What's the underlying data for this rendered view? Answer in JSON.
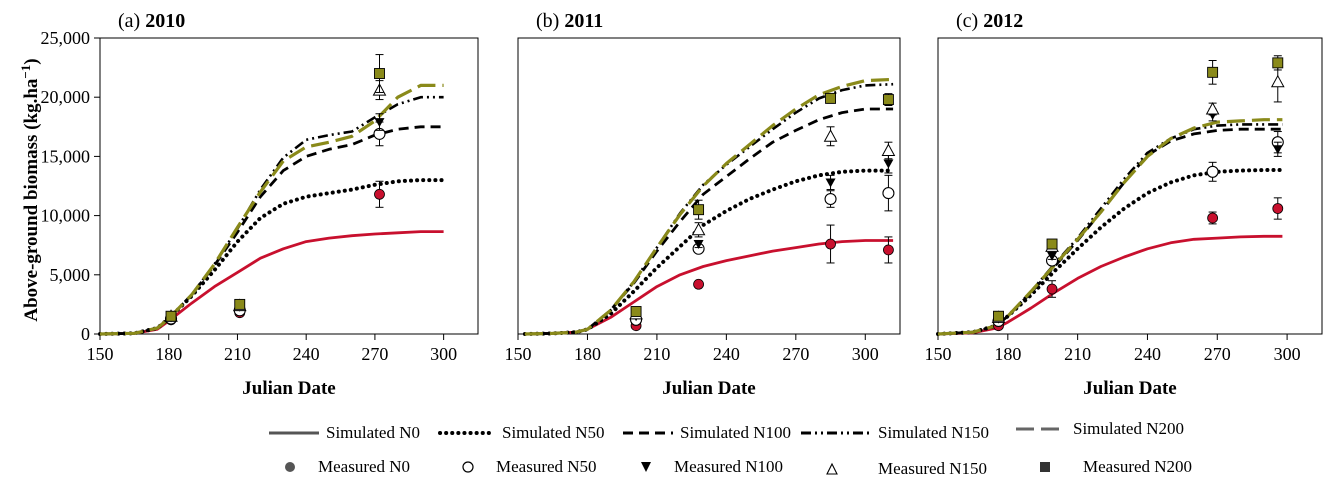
{
  "ylabel": "Above-ground biomass (kg.ha",
  "ylabel_sup": "−1",
  "ylabel_close": ")",
  "colors": {
    "N0": "#c8102e",
    "N200": "#8a8a1a",
    "black": "#000000"
  },
  "legend": {
    "simulated": [
      "Simulated N0",
      "Simulated N50",
      "Simulated N100",
      "Simulated N150",
      "Simulated N200"
    ],
    "measured": [
      "Measured N0",
      "Measured N50",
      "Measured N100",
      "Measured N150",
      "Measured N200"
    ]
  },
  "chart_data": [
    {
      "type": "line",
      "panel_label": "(a) ",
      "year": "2010",
      "xlabel": "Julian Date",
      "xlim": [
        150,
        315
      ],
      "ylim": [
        0,
        25000
      ],
      "xticks": [
        150,
        180,
        210,
        240,
        270,
        300
      ],
      "yticks": [
        0,
        5000,
        10000,
        15000,
        20000,
        25000
      ],
      "ytick_labels": [
        "0",
        "5,000",
        "10,000",
        "15,000",
        "20,000",
        "25,000"
      ],
      "show_yticks": true,
      "simulated": [
        {
          "name": "Simulated N0",
          "x": [
            150,
            165,
            175,
            180,
            190,
            200,
            210,
            220,
            230,
            240,
            250,
            260,
            270,
            280,
            290,
            300
          ],
          "y": [
            0,
            50,
            400,
            1100,
            2600,
            4000,
            5200,
            6400,
            7200,
            7800,
            8100,
            8300,
            8450,
            8550,
            8650,
            8650
          ]
        },
        {
          "name": "Simulated N50",
          "x": [
            150,
            165,
            175,
            180,
            190,
            200,
            210,
            220,
            230,
            240,
            250,
            260,
            270,
            280,
            290,
            300
          ],
          "y": [
            0,
            60,
            500,
            1300,
            3200,
            5400,
            7800,
            9800,
            11000,
            11600,
            11900,
            12200,
            12600,
            12900,
            13000,
            13000
          ]
        },
        {
          "name": "Simulated N100",
          "x": [
            150,
            165,
            175,
            180,
            190,
            200,
            210,
            220,
            230,
            240,
            250,
            260,
            270,
            280,
            290,
            300
          ],
          "y": [
            0,
            60,
            500,
            1300,
            3300,
            5800,
            8600,
            11600,
            13800,
            15000,
            15600,
            16000,
            16800,
            17300,
            17500,
            17500
          ]
        },
        {
          "name": "Simulated N150",
          "x": [
            150,
            165,
            175,
            180,
            190,
            200,
            210,
            220,
            230,
            240,
            250,
            260,
            270,
            280,
            290,
            300
          ],
          "y": [
            0,
            60,
            500,
            1300,
            3300,
            5900,
            8900,
            12200,
            14900,
            16400,
            16800,
            17100,
            18300,
            19400,
            20000,
            20000
          ]
        },
        {
          "name": "Simulated N200",
          "x": [
            150,
            165,
            175,
            180,
            190,
            200,
            210,
            220,
            230,
            240,
            250,
            260,
            270,
            280,
            290,
            300
          ],
          "y": [
            0,
            60,
            500,
            1300,
            3300,
            5900,
            9000,
            12000,
            14600,
            15800,
            16200,
            16700,
            18000,
            20000,
            21000,
            21000
          ]
        }
      ],
      "measured": [
        {
          "name": "Measured N0",
          "x": [
            181,
            211,
            272
          ],
          "y": [
            1200,
            1800,
            11800
          ],
          "err": [
            0,
            200,
            1100
          ]
        },
        {
          "name": "Measured N50",
          "x": [
            181,
            211,
            272
          ],
          "y": [
            1300,
            2000,
            16900
          ],
          "err": [
            0,
            200,
            1000
          ]
        },
        {
          "name": "Measured N100",
          "x": [
            181,
            211,
            272
          ],
          "y": [
            1400,
            2300,
            17900
          ],
          "err": [
            0,
            200,
            700
          ]
        },
        {
          "name": "Measured N150",
          "x": [
            181,
            211,
            272
          ],
          "y": [
            1500,
            2400,
            20600
          ],
          "err": [
            0,
            200,
            800
          ]
        },
        {
          "name": "Measured N200",
          "x": [
            181,
            211,
            272
          ],
          "y": [
            1500,
            2500,
            22000
          ],
          "err": [
            0,
            200,
            1600
          ]
        }
      ]
    },
    {
      "type": "line",
      "panel_label": "(b) ",
      "year": "2011",
      "xlabel": "Julian Date",
      "xlim": [
        150,
        315
      ],
      "ylim": [
        0,
        25000
      ],
      "xticks": [
        150,
        180,
        210,
        240,
        270,
        300
      ],
      "yticks": [
        0,
        5000,
        10000,
        15000,
        20000,
        25000
      ],
      "ytick_labels": [
        "0",
        "5,000",
        "10,000",
        "15,000",
        "20,000",
        "25,000"
      ],
      "show_yticks": false,
      "simulated": [
        {
          "name": "Simulated N0",
          "x": [
            153,
            165,
            175,
            180,
            190,
            200,
            210,
            220,
            230,
            240,
            250,
            260,
            270,
            280,
            290,
            300,
            312
          ],
          "y": [
            0,
            50,
            150,
            400,
            1400,
            2700,
            4000,
            5000,
            5700,
            6200,
            6600,
            7000,
            7300,
            7600,
            7800,
            7900,
            7900
          ]
        },
        {
          "name": "Simulated N50",
          "x": [
            153,
            165,
            175,
            180,
            190,
            200,
            210,
            220,
            230,
            240,
            250,
            260,
            270,
            280,
            290,
            300,
            312
          ],
          "y": [
            0,
            50,
            150,
            400,
            1700,
            3600,
            5600,
            7400,
            9200,
            10400,
            11400,
            12200,
            12900,
            13400,
            13700,
            13800,
            13800
          ]
        },
        {
          "name": "Simulated N100",
          "x": [
            153,
            165,
            175,
            180,
            190,
            200,
            210,
            220,
            230,
            240,
            250,
            260,
            270,
            280,
            290,
            300,
            312
          ],
          "y": [
            0,
            50,
            150,
            400,
            2000,
            4300,
            7000,
            9500,
            11800,
            13300,
            14800,
            16200,
            17200,
            18100,
            18700,
            19000,
            19000
          ]
        },
        {
          "name": "Simulated N150",
          "x": [
            153,
            165,
            175,
            180,
            190,
            200,
            210,
            220,
            230,
            240,
            250,
            260,
            270,
            280,
            290,
            300,
            312
          ],
          "y": [
            0,
            50,
            150,
            400,
            2000,
            4400,
            7300,
            10200,
            12600,
            14300,
            15800,
            17300,
            18700,
            19900,
            20600,
            21000,
            21100
          ]
        },
        {
          "name": "Simulated N200",
          "x": [
            153,
            165,
            175,
            180,
            190,
            200,
            210,
            220,
            230,
            240,
            250,
            260,
            270,
            280,
            290,
            300,
            312
          ],
          "y": [
            0,
            50,
            150,
            400,
            2000,
            4400,
            7300,
            10100,
            12500,
            14400,
            16000,
            17600,
            19000,
            20200,
            20900,
            21400,
            21500
          ]
        }
      ],
      "measured": [
        {
          "name": "Measured N0",
          "x": [
            201,
            228,
            285,
            310
          ],
          "y": [
            700,
            4200,
            7600,
            7100
          ],
          "err": [
            200,
            200,
            1600,
            1100
          ]
        },
        {
          "name": "Measured N50",
          "x": [
            201,
            228,
            285,
            310
          ],
          "y": [
            1200,
            7200,
            11400,
            11900
          ],
          "err": [
            200,
            300,
            700,
            1500
          ]
        },
        {
          "name": "Measured N100",
          "x": [
            201,
            228,
            285,
            310
          ],
          "y": [
            1500,
            7600,
            12800,
            14400
          ],
          "err": [
            200,
            300,
            600,
            800
          ]
        },
        {
          "name": "Measured N150",
          "x": [
            201,
            228,
            285,
            310
          ],
          "y": [
            1700,
            8800,
            16700,
            15500
          ],
          "err": [
            200,
            600,
            800,
            700
          ]
        },
        {
          "name": "Measured N200",
          "x": [
            201,
            228,
            285,
            310
          ],
          "y": [
            1900,
            10500,
            19900,
            19800
          ],
          "err": [
            200,
            800,
            400,
            500
          ]
        }
      ]
    },
    {
      "type": "line",
      "panel_label": "(c) ",
      "year": "2012",
      "xlabel": "Julian Date",
      "xlim": [
        150,
        315
      ],
      "ylim": [
        0,
        25000
      ],
      "xticks": [
        150,
        180,
        210,
        240,
        270,
        300
      ],
      "yticks": [
        0,
        5000,
        10000,
        15000,
        20000,
        25000
      ],
      "ytick_labels": [
        "0",
        "5,000",
        "10,000",
        "15,000",
        "20,000",
        "25,000"
      ],
      "show_yticks": false,
      "simulated": [
        {
          "name": "Simulated N0",
          "x": [
            150,
            165,
            175,
            180,
            190,
            200,
            210,
            220,
            230,
            240,
            250,
            260,
            270,
            280,
            290,
            298
          ],
          "y": [
            0,
            100,
            500,
            1000,
            2200,
            3500,
            4700,
            5700,
            6500,
            7200,
            7700,
            8000,
            8100,
            8200,
            8250,
            8250
          ]
        },
        {
          "name": "Simulated N50",
          "x": [
            150,
            165,
            175,
            180,
            190,
            200,
            210,
            220,
            230,
            240,
            250,
            260,
            270,
            280,
            290,
            298
          ],
          "y": [
            0,
            150,
            700,
            1500,
            3300,
            5300,
            7200,
            9000,
            10600,
            11900,
            12800,
            13400,
            13700,
            13800,
            13850,
            13850
          ]
        },
        {
          "name": "Simulated N100",
          "x": [
            150,
            165,
            175,
            180,
            190,
            200,
            210,
            220,
            230,
            240,
            250,
            260,
            270,
            280,
            290,
            298
          ],
          "y": [
            0,
            150,
            700,
            1500,
            3500,
            5700,
            7900,
            10300,
            12800,
            15100,
            16300,
            16900,
            17200,
            17300,
            17300,
            17300
          ]
        },
        {
          "name": "Simulated N150",
          "x": [
            150,
            165,
            175,
            180,
            190,
            200,
            210,
            220,
            230,
            240,
            250,
            260,
            270,
            280,
            290,
            298
          ],
          "y": [
            0,
            150,
            700,
            1500,
            3600,
            5900,
            8100,
            10600,
            13100,
            15300,
            16500,
            17300,
            17600,
            17700,
            17700,
            17700
          ]
        },
        {
          "name": "Simulated N200",
          "x": [
            150,
            165,
            175,
            180,
            190,
            200,
            210,
            220,
            230,
            240,
            250,
            260,
            270,
            280,
            290,
            298
          ],
          "y": [
            0,
            150,
            700,
            1500,
            3600,
            5800,
            8000,
            10300,
            12800,
            15000,
            16500,
            17400,
            17900,
            18000,
            18100,
            18100
          ]
        }
      ],
      "measured": [
        {
          "name": "Measured N0",
          "x": [
            176,
            199,
            268,
            296
          ],
          "y": [
            700,
            3800,
            9800,
            10600
          ],
          "err": [
            200,
            700,
            500,
            900
          ]
        },
        {
          "name": "Measured N50",
          "x": [
            176,
            199,
            268,
            296
          ],
          "y": [
            1100,
            6200,
            13700,
            16200
          ],
          "err": [
            200,
            300,
            800,
            900
          ]
        },
        {
          "name": "Measured N100",
          "x": [
            176,
            199,
            268,
            296
          ],
          "y": [
            1300,
            6600,
            18500,
            15600
          ],
          "err": [
            200,
            300,
            500,
            600
          ]
        },
        {
          "name": "Measured N150",
          "x": [
            176,
            199,
            268,
            296
          ],
          "y": [
            1400,
            7400,
            19000,
            21300
          ],
          "err": [
            200,
            300,
            500,
            1700
          ]
        },
        {
          "name": "Measured N200",
          "x": [
            176,
            199,
            268,
            296
          ],
          "y": [
            1500,
            7600,
            22100,
            22900
          ],
          "err": [
            200,
            300,
            1000,
            600
          ]
        }
      ]
    }
  ]
}
